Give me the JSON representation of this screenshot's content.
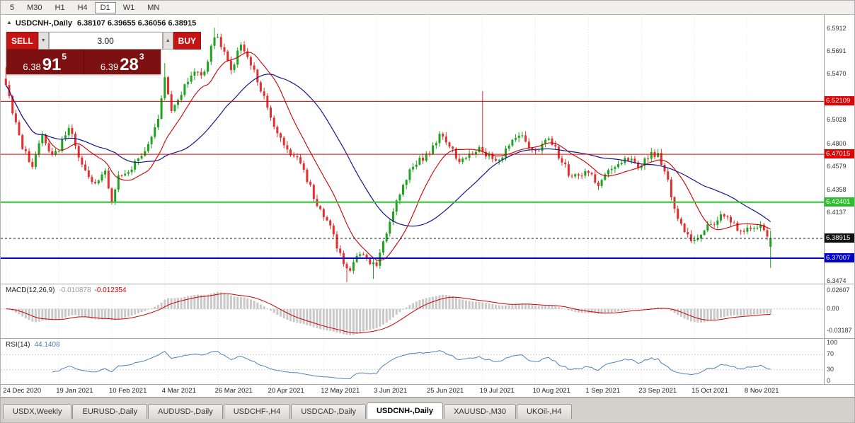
{
  "toolbar": {
    "periods": [
      "5",
      "M30",
      "H1",
      "H4",
      "D1",
      "W1",
      "MN"
    ],
    "active": "D1"
  },
  "chart_header": {
    "collapse_icon": "▲",
    "symbol_title": "USDCNH-,Daily",
    "ohlc_text": "6.38107 6.39655 6.36056 6.38915"
  },
  "trade_panel": {
    "sell_label": "SELL",
    "buy_label": "BUY",
    "volume": "3.00",
    "spin_up": "▲",
    "spin_down": "▼",
    "sell_price": {
      "prefix": "6.38",
      "big": "91",
      "sup": "5"
    },
    "buy_price": {
      "prefix": "6.39",
      "big": "28",
      "sup": "3"
    }
  },
  "price_axis": {
    "range": [
      6.3455,
      6.6045
    ],
    "ticks": [
      "6.5912",
      "6.5691",
      "6.5470",
      "6.5028",
      "6.4800",
      "6.4579",
      "6.4358",
      "6.4137",
      "6.3474"
    ]
  },
  "hlines": [
    {
      "price": 6.52109,
      "label": "6.52109",
      "color": "#e00000",
      "width": 1,
      "dash": ""
    },
    {
      "price": 6.47015,
      "label": "6.47015",
      "color": "#e00000",
      "width": 1,
      "dash": ""
    },
    {
      "price": 6.42401,
      "label": "6.42401",
      "color": "#2dbe2d",
      "width": 2,
      "dash": ""
    },
    {
      "price": 6.37007,
      "label": "6.37007",
      "color": "#0000cd",
      "width": 2,
      "dash": ""
    },
    {
      "price": 6.38915,
      "label": "6.38915",
      "color": "#111111",
      "width": 1,
      "dash": "3,3"
    }
  ],
  "dates": {
    "labels": [
      "24 Dec 2020",
      "19 Jan 2021",
      "10 Feb 2021",
      "4 Mar 2021",
      "26 Mar 2021",
      "20 Apr 2021",
      "12 May 2021",
      "3 Jun 2021",
      "25 Jun 2021",
      "19 Jul 2021",
      "10 Aug 2021",
      "1 Sep 2021",
      "23 Sep 2021",
      "15 Oct 2021",
      "8 Nov 2021"
    ],
    "bars_per_tick": 16
  },
  "chart_data": {
    "type": "candlestick",
    "symbol": "USDCNH",
    "timeframe": "Daily",
    "bars": 232,
    "quote": {
      "open": 6.38107,
      "high": 6.39655,
      "low": 6.36056,
      "close": 6.38915
    },
    "anchors": [
      [
        0,
        6.538
      ],
      [
        2,
        6.512
      ],
      [
        5,
        6.478
      ],
      [
        8,
        6.458
      ],
      [
        11,
        6.488
      ],
      [
        14,
        6.47
      ],
      [
        16,
        6.476
      ],
      [
        19,
        6.498
      ],
      [
        22,
        6.468
      ],
      [
        26,
        6.442
      ],
      [
        30,
        6.452
      ],
      [
        32,
        6.425
      ],
      [
        34,
        6.448
      ],
      [
        38,
        6.458
      ],
      [
        42,
        6.472
      ],
      [
        46,
        6.505
      ],
      [
        48,
        6.545
      ],
      [
        50,
        6.515
      ],
      [
        53,
        6.53
      ],
      [
        57,
        6.552
      ],
      [
        60,
        6.548
      ],
      [
        63,
        6.585
      ],
      [
        65,
        6.575
      ],
      [
        68,
        6.552
      ],
      [
        71,
        6.575
      ],
      [
        74,
        6.558
      ],
      [
        78,
        6.525
      ],
      [
        82,
        6.49
      ],
      [
        86,
        6.472
      ],
      [
        89,
        6.463
      ],
      [
        92,
        6.438
      ],
      [
        95,
        6.415
      ],
      [
        98,
        6.4
      ],
      [
        101,
        6.372
      ],
      [
        104,
        6.358
      ],
      [
        107,
        6.376
      ],
      [
        110,
        6.364
      ],
      [
        112,
        6.362
      ],
      [
        115,
        6.395
      ],
      [
        118,
        6.425
      ],
      [
        121,
        6.448
      ],
      [
        124,
        6.462
      ],
      [
        127,
        6.468
      ],
      [
        131,
        6.488
      ],
      [
        134,
        6.478
      ],
      [
        137,
        6.462
      ],
      [
        140,
        6.468
      ],
      [
        143,
        6.475
      ],
      [
        146,
        6.468
      ],
      [
        149,
        6.462
      ],
      [
        152,
        6.478
      ],
      [
        155,
        6.49
      ],
      [
        158,
        6.478
      ],
      [
        161,
        6.472
      ],
      [
        164,
        6.488
      ],
      [
        167,
        6.468
      ],
      [
        170,
        6.452
      ],
      [
        173,
        6.448
      ],
      [
        176,
        6.455
      ],
      [
        179,
        6.44
      ],
      [
        182,
        6.452
      ],
      [
        185,
        6.462
      ],
      [
        188,
        6.465
      ],
      [
        191,
        6.458
      ],
      [
        194,
        6.468
      ],
      [
        197,
        6.472
      ],
      [
        200,
        6.445
      ],
      [
        203,
        6.405
      ],
      [
        206,
        6.392
      ],
      [
        208,
        6.385
      ],
      [
        211,
        6.398
      ],
      [
        214,
        6.405
      ],
      [
        217,
        6.412
      ],
      [
        220,
        6.402
      ],
      [
        223,
        6.395
      ],
      [
        226,
        6.402
      ],
      [
        229,
        6.398
      ],
      [
        231,
        6.389
      ]
    ],
    "spikes": {
      "highs": [
        [
          0,
          6.554
        ],
        [
          48,
          6.558
        ],
        [
          63,
          6.592
        ],
        [
          144,
          6.531
        ]
      ],
      "lows": [
        [
          103,
          6.347
        ],
        [
          111,
          6.35
        ]
      ]
    },
    "last_candle": {
      "o": 6.38107,
      "h": 6.39655,
      "l": 6.36056,
      "c": 6.38915
    },
    "ma_fast": 13,
    "ma_slow": 34
  },
  "macd": {
    "title": "MACD(12,26,9)",
    "value_main": "-0.010878",
    "value_signal": "-0.012354",
    "ticks": [
      "0.02607",
      "0.00",
      "-0.03187"
    ],
    "ylim": [
      -0.0395,
      0.033
    ]
  },
  "rsi": {
    "title": "RSI(14)",
    "value": "44.1408",
    "ticks": [
      "100",
      "70",
      "30",
      "0"
    ],
    "levels": [
      70,
      30
    ]
  },
  "tabs": {
    "items": [
      "USDX,Weekly",
      "EURUSD-,Daily",
      "AUDUSD-,Daily",
      "USDCHF-,H4",
      "USDCAD-,Daily",
      "USDCNH-,Daily",
      "XAUUSD-,M30",
      "UKOil-,H4"
    ],
    "active": "USDCNH-,Daily"
  },
  "colors": {
    "up": "#1ea31e",
    "down": "#e03030",
    "ma_fast": "#cc0000",
    "ma_slow": "#16168c",
    "macd_hist": "#c9c9c9",
    "macd_signal": "#cc0000",
    "rsi_line": "#4f81bd",
    "grid": "#e4e4e4",
    "accent_red": "#c41414",
    "panel_red": "#7d1111"
  }
}
